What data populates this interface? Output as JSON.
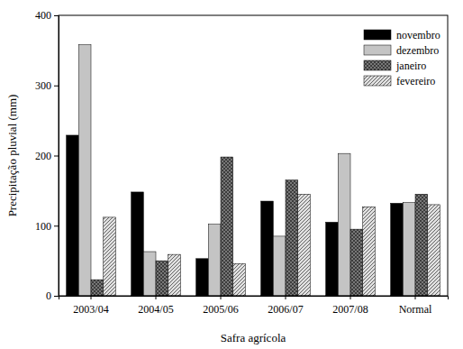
{
  "chart_data": {
    "type": "bar",
    "x_label": "Safra agrícola",
    "y_label": "Precipitação pluvial (mm)",
    "categories": [
      "2003/04",
      "2004/05",
      "2005/06",
      "2006/07",
      "2007/08",
      "Normal"
    ],
    "series": [
      {
        "name": "novembro",
        "color": "#000000",
        "values": [
          229,
          148,
          53,
          135,
          105,
          132
        ]
      },
      {
        "name": "dezembro",
        "color": "#c4c4c4",
        "values": [
          358,
          63,
          102,
          85,
          203,
          133
        ]
      },
      {
        "name": "janeiro",
        "color": "#3c3c3c",
        "values": [
          23,
          50,
          198,
          165,
          95,
          145
        ]
      },
      {
        "name": "fevereiro",
        "color": "#e0e0e0",
        "values": [
          112,
          59,
          46,
          145,
          127,
          130
        ]
      }
    ],
    "ylim": [
      0,
      400
    ],
    "yticks": [
      0,
      100,
      200,
      300,
      400
    ],
    "grid": false,
    "legend": "upper right"
  }
}
